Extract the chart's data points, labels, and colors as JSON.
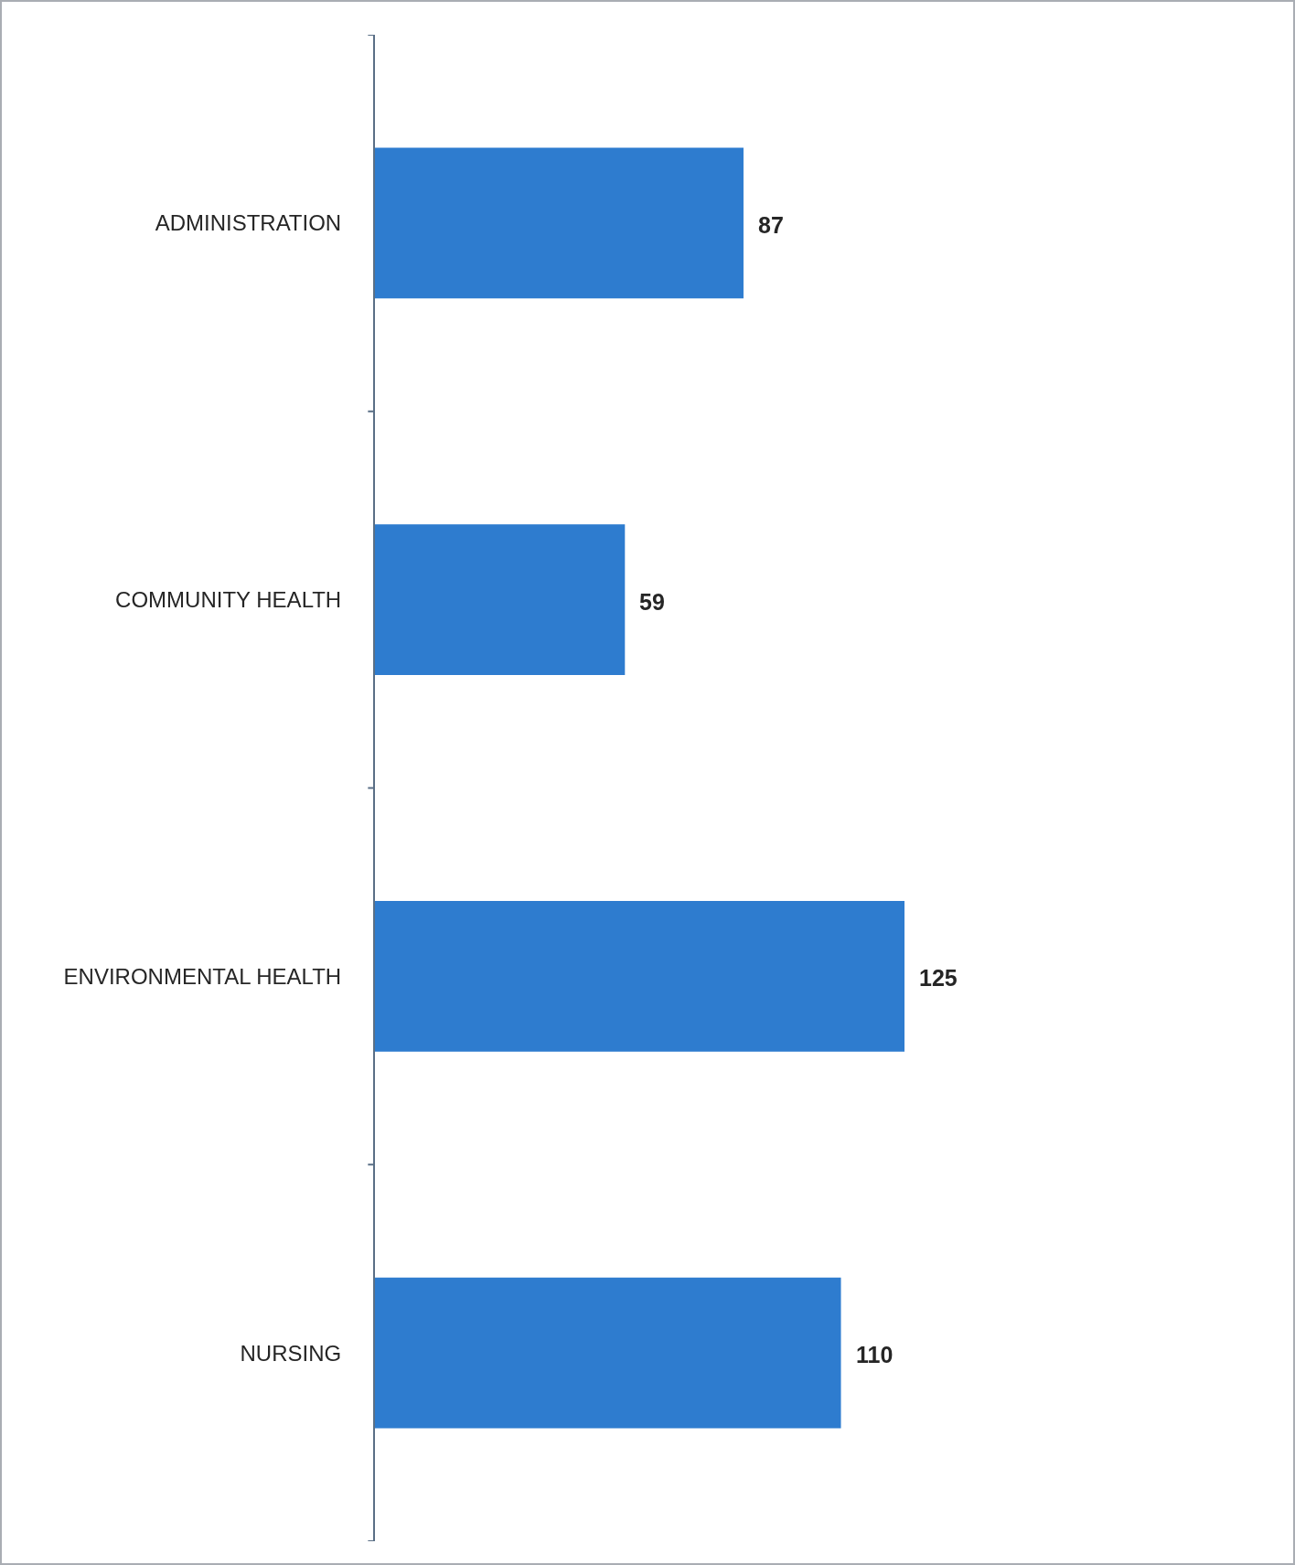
{
  "chart_data": {
    "type": "bar",
    "orientation": "horizontal",
    "categories": [
      "ADMINISTRATION",
      "COMMUNITY HEALTH",
      "ENVIRONMENTAL HEALTH",
      "NURSING"
    ],
    "values": [
      87,
      59,
      125,
      110
    ],
    "color": "#2e7ccf",
    "data_labels": true,
    "tick_labels": "y"
  }
}
